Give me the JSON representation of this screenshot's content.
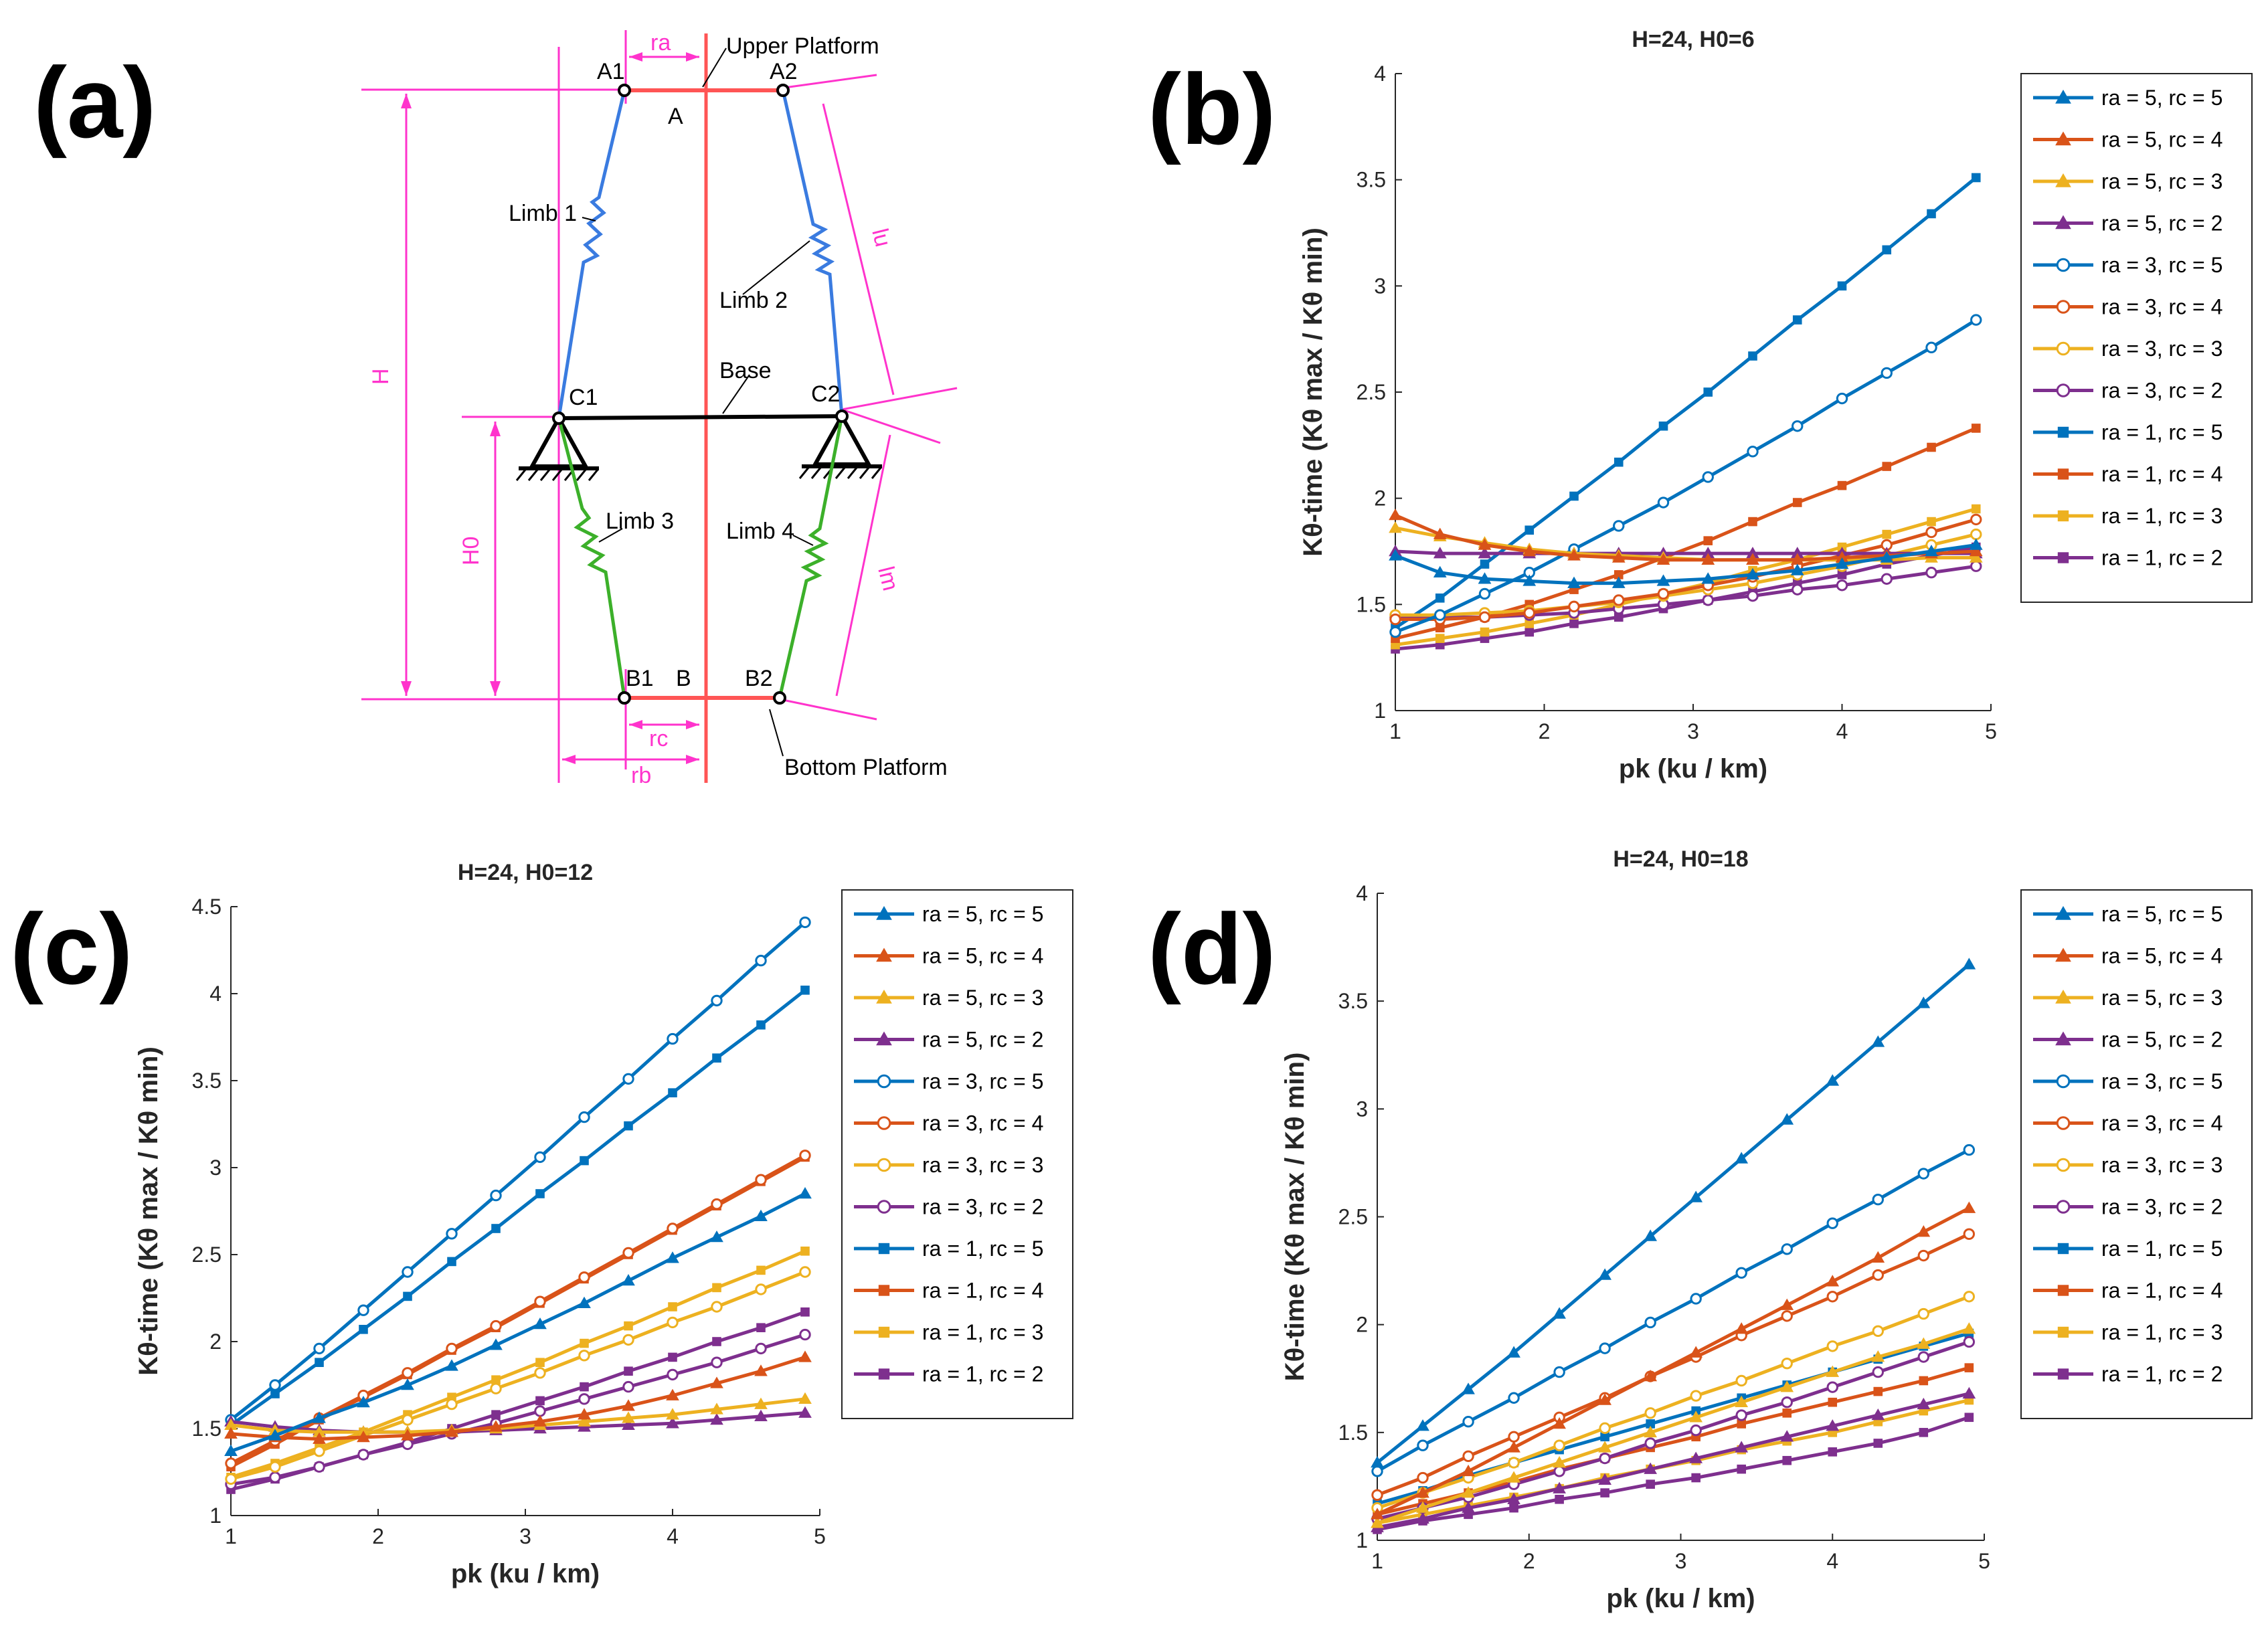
{
  "panel_letters": [
    "(a)",
    "(b)",
    "(c)",
    "(d)"
  ],
  "colors": {
    "rc5": "#0072bd",
    "rc4": "#d95319",
    "rc3": "#edb120",
    "rc2": "#7e2f8e",
    "diagram_magenta": "#ff33cc",
    "diagram_red": "#ff5555",
    "limb_blue": "#3a7be0",
    "limb_green": "#3cb02a"
  },
  "diagram": {
    "labels": {
      "A1": "A1",
      "A2": "A2",
      "A": "A",
      "B1": "B1",
      "B2": "B2",
      "B": "B",
      "C1": "C1",
      "C2": "C2",
      "upper_platform": "Upper Platform",
      "bottom_platform": "Bottom Platform",
      "base": "Base",
      "limb1": "Limb 1",
      "limb2": "Limb 2",
      "limb3": "Limb 3",
      "limb4": "Limb 4",
      "ra": "ra",
      "rb": "rb",
      "rc": "rc",
      "H": "H",
      "H0": "H0",
      "lu": "lu",
      "lm": "lm"
    }
  },
  "chart_data": [
    {
      "id": "b",
      "type": "line",
      "title": "H=24, H0=6",
      "xlabel": "pk (ku / km)",
      "ylabel": "Kθ-time (Kθ max / Kθ min)",
      "xlim": [
        1,
        5
      ],
      "ylim": [
        1,
        4
      ],
      "xticks": [
        1,
        2,
        3,
        4,
        5
      ],
      "yticks": [
        1,
        1.5,
        2,
        2.5,
        3,
        3.5,
        4
      ],
      "x": [
        1,
        1.3,
        1.6,
        1.9,
        2.2,
        2.5,
        2.8,
        3.1,
        3.4,
        3.7,
        4,
        4.3,
        4.6,
        4.9
      ],
      "series": [
        {
          "name": "ra = 5, rc = 5",
          "color": "rc5",
          "marker": "triangle",
          "values": [
            1.73,
            1.65,
            1.62,
            1.61,
            1.6,
            1.6,
            1.61,
            1.62,
            1.64,
            1.66,
            1.69,
            1.72,
            1.75,
            1.78
          ]
        },
        {
          "name": "ra = 5, rc = 4",
          "color": "rc4",
          "marker": "triangle",
          "values": [
            1.92,
            1.83,
            1.78,
            1.75,
            1.73,
            1.72,
            1.71,
            1.71,
            1.71,
            1.71,
            1.72,
            1.73,
            1.74,
            1.75
          ]
        },
        {
          "name": "ra = 5, rc = 3",
          "color": "rc3",
          "marker": "triangle",
          "values": [
            1.86,
            1.82,
            1.79,
            1.76,
            1.74,
            1.73,
            1.72,
            1.71,
            1.71,
            1.71,
            1.71,
            1.71,
            1.72,
            1.72
          ]
        },
        {
          "name": "ra = 5, rc = 2",
          "color": "rc2",
          "marker": "triangle",
          "values": [
            1.75,
            1.74,
            1.74,
            1.74,
            1.74,
            1.74,
            1.74,
            1.74,
            1.74,
            1.74,
            1.74,
            1.74,
            1.74,
            1.74
          ]
        },
        {
          "name": "ra = 3, rc = 5",
          "color": "rc5",
          "marker": "circle",
          "values": [
            1.37,
            1.45,
            1.55,
            1.65,
            1.76,
            1.87,
            1.98,
            2.1,
            2.22,
            2.34,
            2.47,
            2.59,
            2.71,
            2.84
          ]
        },
        {
          "name": "ra = 3, rc = 4",
          "color": "rc4",
          "marker": "circle",
          "values": [
            1.43,
            1.43,
            1.44,
            1.46,
            1.49,
            1.52,
            1.55,
            1.59,
            1.63,
            1.68,
            1.73,
            1.78,
            1.84,
            1.9
          ]
        },
        {
          "name": "ra = 3, rc = 3",
          "color": "rc3",
          "marker": "circle",
          "values": [
            1.45,
            1.45,
            1.46,
            1.47,
            1.49,
            1.51,
            1.54,
            1.57,
            1.6,
            1.64,
            1.68,
            1.73,
            1.78,
            1.83
          ]
        },
        {
          "name": "ra = 3, rc = 2",
          "color": "rc2",
          "marker": "circle",
          "values": [
            1.44,
            1.44,
            1.44,
            1.45,
            1.46,
            1.48,
            1.5,
            1.52,
            1.54,
            1.57,
            1.59,
            1.62,
            1.65,
            1.68
          ]
        },
        {
          "name": "ra = 1, rc = 5",
          "color": "rc5",
          "marker": "square",
          "values": [
            1.39,
            1.53,
            1.69,
            1.85,
            2.01,
            2.17,
            2.34,
            2.5,
            2.67,
            2.84,
            3.0,
            3.17,
            3.34,
            3.51
          ]
        },
        {
          "name": "ra = 1, rc = 4",
          "color": "rc4",
          "marker": "square",
          "values": [
            1.34,
            1.39,
            1.44,
            1.5,
            1.57,
            1.64,
            1.72,
            1.8,
            1.89,
            1.98,
            2.06,
            2.15,
            2.24,
            2.33
          ]
        },
        {
          "name": "ra = 1, rc = 3",
          "color": "rc3",
          "marker": "square",
          "values": [
            1.31,
            1.34,
            1.37,
            1.41,
            1.45,
            1.5,
            1.55,
            1.6,
            1.66,
            1.71,
            1.77,
            1.83,
            1.89,
            1.95
          ]
        },
        {
          "name": "ra = 1, rc = 2",
          "color": "rc2",
          "marker": "square",
          "values": [
            1.29,
            1.31,
            1.34,
            1.37,
            1.41,
            1.44,
            1.48,
            1.52,
            1.56,
            1.6,
            1.64,
            1.69,
            1.73,
            1.77
          ]
        }
      ]
    },
    {
      "id": "c",
      "type": "line",
      "title": "H=24, H0=12",
      "xlabel": "pk (ku / km)",
      "ylabel": "Kθ-time (Kθ max / Kθ min)",
      "xlim": [
        1,
        5
      ],
      "ylim": [
        1,
        4.5
      ],
      "xticks": [
        1,
        2,
        3,
        4,
        5
      ],
      "yticks": [
        1,
        1.5,
        2,
        2.5,
        3,
        3.5,
        4,
        4.5
      ],
      "x": [
        1,
        1.3,
        1.6,
        1.9,
        2.2,
        2.5,
        2.8,
        3.1,
        3.4,
        3.7,
        4,
        4.3,
        4.6,
        4.9
      ],
      "series": [
        {
          "name": "ra = 5, rc = 5",
          "color": "rc5",
          "marker": "triangle",
          "values": [
            1.37,
            1.46,
            1.56,
            1.65,
            1.75,
            1.86,
            1.98,
            2.1,
            2.22,
            2.35,
            2.48,
            2.6,
            2.72,
            2.85
          ]
        },
        {
          "name": "ra = 5, rc = 4",
          "color": "rc4",
          "marker": "triangle",
          "values": [
            1.47,
            1.45,
            1.44,
            1.45,
            1.46,
            1.48,
            1.51,
            1.54,
            1.58,
            1.63,
            1.69,
            1.76,
            1.83,
            1.91
          ]
        },
        {
          "name": "ra = 5, rc = 3",
          "color": "rc3",
          "marker": "triangle",
          "values": [
            1.52,
            1.49,
            1.48,
            1.48,
            1.48,
            1.49,
            1.5,
            1.52,
            1.54,
            1.56,
            1.58,
            1.61,
            1.64,
            1.67
          ]
        },
        {
          "name": "ra = 5, rc = 2",
          "color": "rc2",
          "marker": "triangle",
          "values": [
            1.54,
            1.51,
            1.49,
            1.48,
            1.48,
            1.48,
            1.49,
            1.5,
            1.51,
            1.52,
            1.53,
            1.55,
            1.57,
            1.59
          ]
        },
        {
          "name": "ra = 3, rc = 5",
          "color": "rc5",
          "marker": "circle",
          "values": [
            1.55,
            1.75,
            1.96,
            2.18,
            2.4,
            2.62,
            2.84,
            3.06,
            3.29,
            3.51,
            3.74,
            3.96,
            4.19,
            4.41
          ]
        },
        {
          "name": "ra = 3, rc = 4",
          "color": "rc4",
          "marker": "circle",
          "values": [
            1.3,
            1.43,
            1.56,
            1.69,
            1.82,
            1.96,
            2.09,
            2.23,
            2.37,
            2.51,
            2.65,
            2.79,
            2.93,
            3.07
          ]
        },
        {
          "name": "ra = 3, rc = 3",
          "color": "rc3",
          "marker": "circle",
          "values": [
            1.21,
            1.28,
            1.37,
            1.46,
            1.55,
            1.64,
            1.73,
            1.82,
            1.92,
            2.01,
            2.11,
            2.2,
            2.3,
            2.4
          ]
        },
        {
          "name": "ra = 3, rc = 2",
          "color": "rc2",
          "marker": "circle",
          "values": [
            1.18,
            1.22,
            1.28,
            1.35,
            1.41,
            1.47,
            1.53,
            1.6,
            1.67,
            1.74,
            1.81,
            1.88,
            1.96,
            2.04
          ]
        },
        {
          "name": "ra = 1, rc = 5",
          "color": "rc5",
          "marker": "square",
          "values": [
            1.52,
            1.7,
            1.88,
            2.07,
            2.26,
            2.46,
            2.65,
            2.85,
            3.04,
            3.24,
            3.43,
            3.63,
            3.82,
            4.02
          ]
        },
        {
          "name": "ra = 1, rc = 4",
          "color": "rc4",
          "marker": "square",
          "values": [
            1.28,
            1.41,
            1.55,
            1.68,
            1.81,
            1.95,
            2.08,
            2.22,
            2.36,
            2.5,
            2.64,
            2.78,
            2.92,
            3.06
          ]
        },
        {
          "name": "ra = 1, rc = 3",
          "color": "rc3",
          "marker": "square",
          "values": [
            1.22,
            1.3,
            1.39,
            1.48,
            1.58,
            1.68,
            1.78,
            1.88,
            1.99,
            2.09,
            2.2,
            2.31,
            2.41,
            2.52
          ]
        },
        {
          "name": "ra = 1, rc = 2",
          "color": "rc2",
          "marker": "square",
          "values": [
            1.15,
            1.21,
            1.28,
            1.35,
            1.42,
            1.5,
            1.58,
            1.66,
            1.74,
            1.83,
            1.91,
            2.0,
            2.08,
            2.17
          ]
        }
      ]
    },
    {
      "id": "d",
      "type": "line",
      "title": "H=24, H0=18",
      "xlabel": "pk (ku / km)",
      "ylabel": "Kθ-time (Kθ max / Kθ min)",
      "xlim": [
        1,
        5
      ],
      "ylim": [
        1,
        4
      ],
      "xticks": [
        1,
        2,
        3,
        4,
        5
      ],
      "yticks": [
        1,
        1.5,
        2,
        2.5,
        3,
        3.5,
        4
      ],
      "x": [
        1,
        1.3,
        1.6,
        1.9,
        2.2,
        2.5,
        2.8,
        3.1,
        3.4,
        3.7,
        4,
        4.3,
        4.6,
        4.9
      ],
      "series": [
        {
          "name": "ra = 5, rc = 5",
          "color": "rc5",
          "marker": "triangle",
          "values": [
            1.36,
            1.53,
            1.7,
            1.87,
            2.05,
            2.23,
            2.41,
            2.59,
            2.77,
            2.95,
            3.13,
            3.31,
            3.49,
            3.67
          ]
        },
        {
          "name": "ra = 5, rc = 4",
          "color": "rc4",
          "marker": "triangle",
          "values": [
            1.12,
            1.22,
            1.32,
            1.43,
            1.54,
            1.65,
            1.76,
            1.87,
            1.98,
            2.09,
            2.2,
            2.31,
            2.43,
            2.54
          ]
        },
        {
          "name": "ra = 5, rc = 3",
          "color": "rc3",
          "marker": "triangle",
          "values": [
            1.08,
            1.15,
            1.22,
            1.29,
            1.36,
            1.43,
            1.5,
            1.57,
            1.64,
            1.71,
            1.78,
            1.85,
            1.91,
            1.98
          ]
        },
        {
          "name": "ra = 5, rc = 2",
          "color": "rc2",
          "marker": "triangle",
          "values": [
            1.06,
            1.1,
            1.15,
            1.19,
            1.24,
            1.28,
            1.33,
            1.38,
            1.43,
            1.48,
            1.53,
            1.58,
            1.63,
            1.68
          ]
        },
        {
          "name": "ra = 3, rc = 5",
          "color": "rc5",
          "marker": "circle",
          "values": [
            1.32,
            1.44,
            1.55,
            1.66,
            1.78,
            1.89,
            2.01,
            2.12,
            2.24,
            2.35,
            2.47,
            2.58,
            2.7,
            2.81
          ]
        },
        {
          "name": "ra = 3, rc = 4",
          "color": "rc4",
          "marker": "circle",
          "values": [
            1.21,
            1.29,
            1.39,
            1.48,
            1.57,
            1.66,
            1.76,
            1.85,
            1.95,
            2.04,
            2.13,
            2.23,
            2.32,
            2.42
          ]
        },
        {
          "name": "ra = 3, rc = 3",
          "color": "rc3",
          "marker": "circle",
          "values": [
            1.15,
            1.22,
            1.29,
            1.36,
            1.44,
            1.52,
            1.59,
            1.67,
            1.74,
            1.82,
            1.9,
            1.97,
            2.05,
            2.13
          ]
        },
        {
          "name": "ra = 3, rc = 2",
          "color": "rc2",
          "marker": "circle",
          "values": [
            1.1,
            1.15,
            1.2,
            1.26,
            1.32,
            1.38,
            1.45,
            1.51,
            1.58,
            1.64,
            1.71,
            1.78,
            1.85,
            1.92
          ]
        },
        {
          "name": "ra = 1, rc = 5",
          "color": "rc5",
          "marker": "square",
          "values": [
            1.17,
            1.23,
            1.3,
            1.36,
            1.42,
            1.48,
            1.54,
            1.6,
            1.66,
            1.72,
            1.78,
            1.84,
            1.9,
            1.96
          ]
        },
        {
          "name": "ra = 1, rc = 4",
          "color": "rc4",
          "marker": "square",
          "values": [
            1.12,
            1.17,
            1.22,
            1.27,
            1.33,
            1.38,
            1.43,
            1.48,
            1.54,
            1.59,
            1.64,
            1.69,
            1.74,
            1.8
          ]
        },
        {
          "name": "ra = 1, rc = 3",
          "color": "rc3",
          "marker": "square",
          "values": [
            1.08,
            1.12,
            1.16,
            1.2,
            1.24,
            1.29,
            1.33,
            1.37,
            1.42,
            1.46,
            1.5,
            1.55,
            1.6,
            1.65
          ]
        },
        {
          "name": "ra = 1, rc = 2",
          "color": "rc2",
          "marker": "square",
          "values": [
            1.05,
            1.09,
            1.12,
            1.15,
            1.19,
            1.22,
            1.26,
            1.29,
            1.33,
            1.37,
            1.41,
            1.45,
            1.5,
            1.57
          ]
        }
      ]
    }
  ]
}
